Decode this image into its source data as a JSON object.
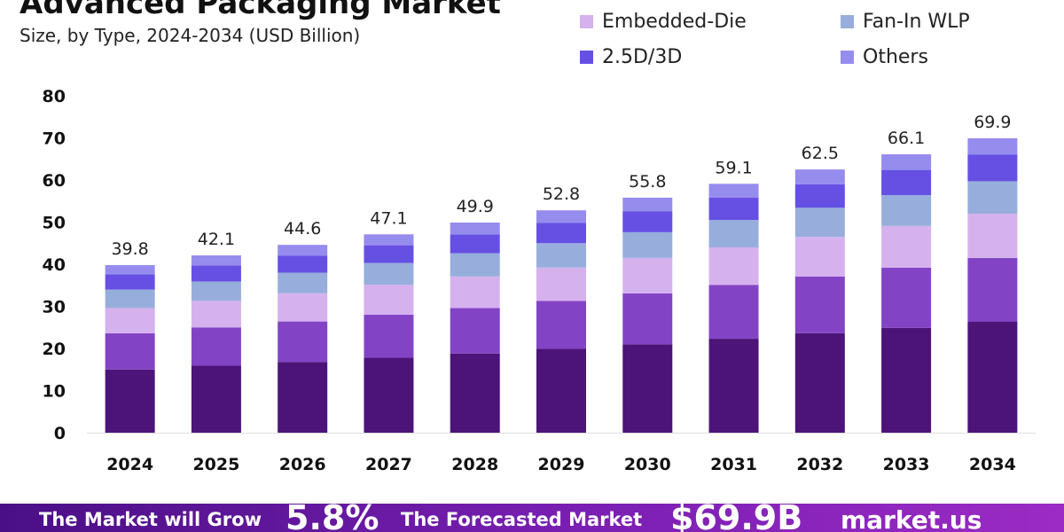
{
  "header": {
    "title": "Advanced Packaging Market",
    "subtitle": "Size, by Type, 2024-2034 (USD Billion)"
  },
  "footer": {
    "grow_text": "The Market will Grow",
    "cagr": "5.8%",
    "forecast_text": "The Forecasted Market",
    "forecast_value": "$69.9B",
    "logo": "market.us"
  },
  "colors": {
    "axis": "#dddddd",
    "label": "#111111",
    "footer_start": "#4a0f86",
    "footer_end": "#9b2bc4"
  },
  "chart_data": {
    "type": "bar",
    "stacked": true,
    "categories": [
      "2024",
      "2025",
      "2026",
      "2027",
      "2028",
      "2029",
      "2030",
      "2031",
      "2032",
      "2033",
      "2034"
    ],
    "totals": [
      39.8,
      42.1,
      44.6,
      47.1,
      49.9,
      52.8,
      55.8,
      59.1,
      62.5,
      66.1,
      69.9
    ],
    "ylim": [
      0,
      80
    ],
    "yticks": [
      0,
      10,
      20,
      30,
      40,
      50,
      60,
      70,
      80
    ],
    "grid": false,
    "legend_position": "top-right",
    "series": [
      {
        "name": "",
        "color": "#4c1379",
        "values": [
          15.0,
          15.9,
          16.8,
          17.8,
          18.8,
          19.9,
          21.0,
          22.3,
          23.6,
          24.9,
          26.4
        ]
      },
      {
        "name": "",
        "color": "#8244c5",
        "values": [
          8.6,
          9.1,
          9.6,
          10.2,
          10.8,
          11.4,
          12.1,
          12.8,
          13.5,
          14.3,
          15.1
        ]
      },
      {
        "name": "Embedded-Die",
        "color": "#d5b1ee",
        "values": [
          6.0,
          6.3,
          6.7,
          7.1,
          7.5,
          7.9,
          8.4,
          8.9,
          9.4,
          9.9,
          10.5
        ]
      },
      {
        "name": "Fan-In WLP",
        "color": "#97aedc",
        "values": [
          4.4,
          4.6,
          4.9,
          5.2,
          5.5,
          5.8,
          6.1,
          6.5,
          6.9,
          7.3,
          7.7
        ]
      },
      {
        "name": "2.5D/3D",
        "color": "#6650e3",
        "values": [
          3.6,
          3.8,
          4.0,
          4.2,
          4.5,
          4.8,
          5.0,
          5.3,
          5.6,
          6.0,
          6.3
        ]
      },
      {
        "name": "Others",
        "color": "#968ced",
        "values": [
          2.2,
          2.4,
          2.6,
          2.6,
          2.8,
          3.0,
          3.2,
          3.3,
          3.5,
          3.7,
          3.9
        ]
      }
    ]
  }
}
